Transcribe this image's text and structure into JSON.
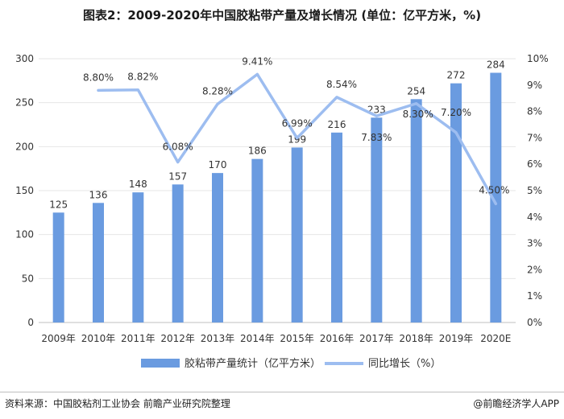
{
  "title": "图表2：2009-2020年中国胶粘带产量及增长情况 (单位：亿平方米，%)",
  "footer": {
    "source": "资料来源：中国胶粘剂工业协会 前瞻产业研究院整理",
    "brand": "@前瞻经济学人APP"
  },
  "colors": {
    "bar": "#6a9be0",
    "line": "#9dbdf0",
    "grid": "#e6e6e6"
  },
  "chart_data": {
    "type": "bar",
    "categories": [
      "2009年",
      "2010年",
      "2011年",
      "2012年",
      "2013年",
      "2014年",
      "2015年",
      "2016年",
      "2017年",
      "2018年",
      "2019年",
      "2020E"
    ],
    "series": [
      {
        "name": "胶粘带产量统计（亿平方米）",
        "type": "bar",
        "axis": "left",
        "values": [
          125,
          136,
          148,
          157,
          170,
          186,
          199,
          216,
          233,
          254,
          272,
          284
        ],
        "labels": [
          "125",
          "136",
          "148",
          "157",
          "170",
          "186",
          "199",
          "216",
          "233",
          "254",
          "272",
          "284"
        ]
      },
      {
        "name": "同比增长（%）",
        "type": "line",
        "axis": "right",
        "values": [
          null,
          8.8,
          8.82,
          6.08,
          8.28,
          9.41,
          6.99,
          8.54,
          7.83,
          8.3,
          7.2,
          4.5
        ],
        "labels": [
          "",
          "8.80%",
          "8.82%",
          "6.08%",
          "8.28%",
          "9.41%",
          "6.99%",
          "8.54%",
          "7.83%",
          "8.30%",
          "7.20%",
          "4.50%"
        ]
      }
    ],
    "y_left": {
      "min": 0,
      "max": 300,
      "ticks": [
        "0",
        "50",
        "100",
        "150",
        "200",
        "250",
        "300"
      ]
    },
    "y_right": {
      "min": 0,
      "max": 10,
      "ticks": [
        "0%",
        "1%",
        "2%",
        "3%",
        "4%",
        "5%",
        "6%",
        "7%",
        "8%",
        "9%",
        "10%"
      ]
    },
    "grid": true,
    "legend_position": "bottom"
  }
}
